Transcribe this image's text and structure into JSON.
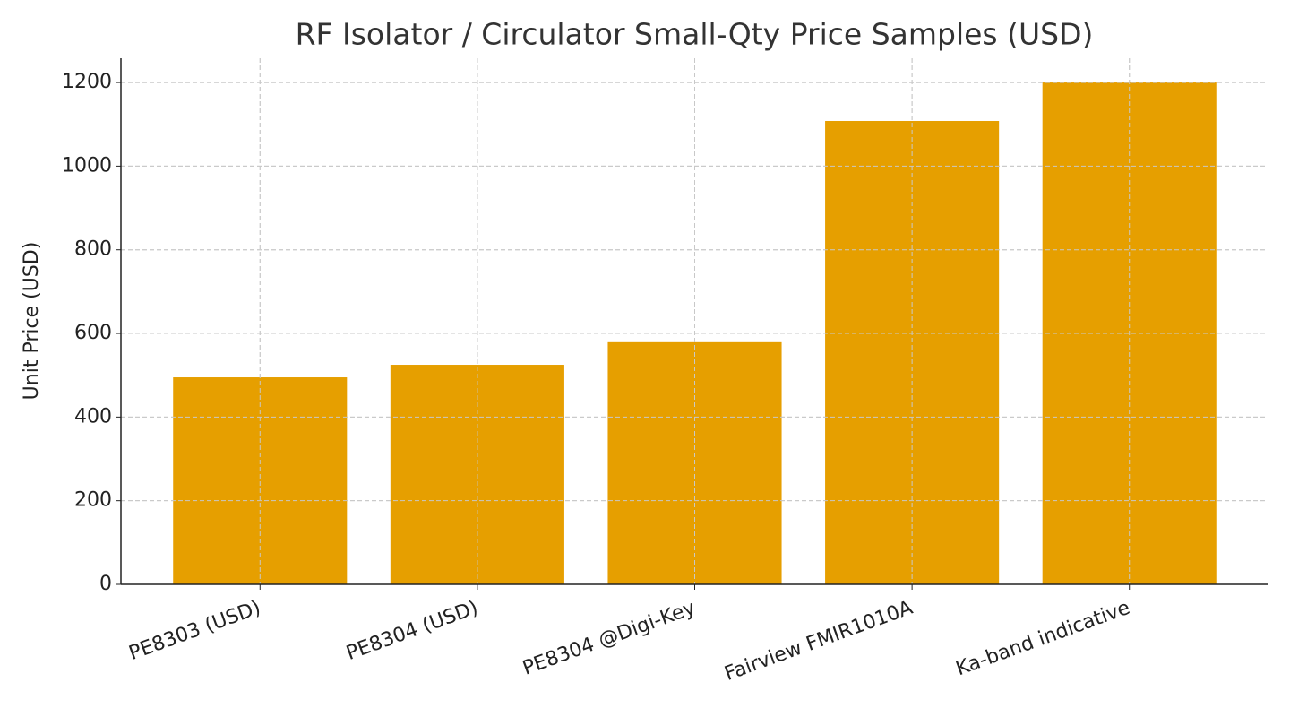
{
  "chart_data": {
    "type": "bar",
    "title": "RF Isolator / Circulator Small-Qty Price Samples (USD)",
    "y_label": "Unit Price (USD)",
    "categories": [
      "PE8303 (USD)",
      "PE8304 (USD)",
      "PE8304 @Digi-Key",
      "Fairview FMIR1010A",
      "Ka-band indicative"
    ],
    "values": [
      495,
      525,
      579,
      1108,
      1200
    ],
    "color": "#e69f00",
    "ylim": [
      0,
      1258
    ],
    "yticks": [
      0,
      200,
      400,
      600,
      800,
      1000,
      1200
    ],
    "grid": true
  }
}
